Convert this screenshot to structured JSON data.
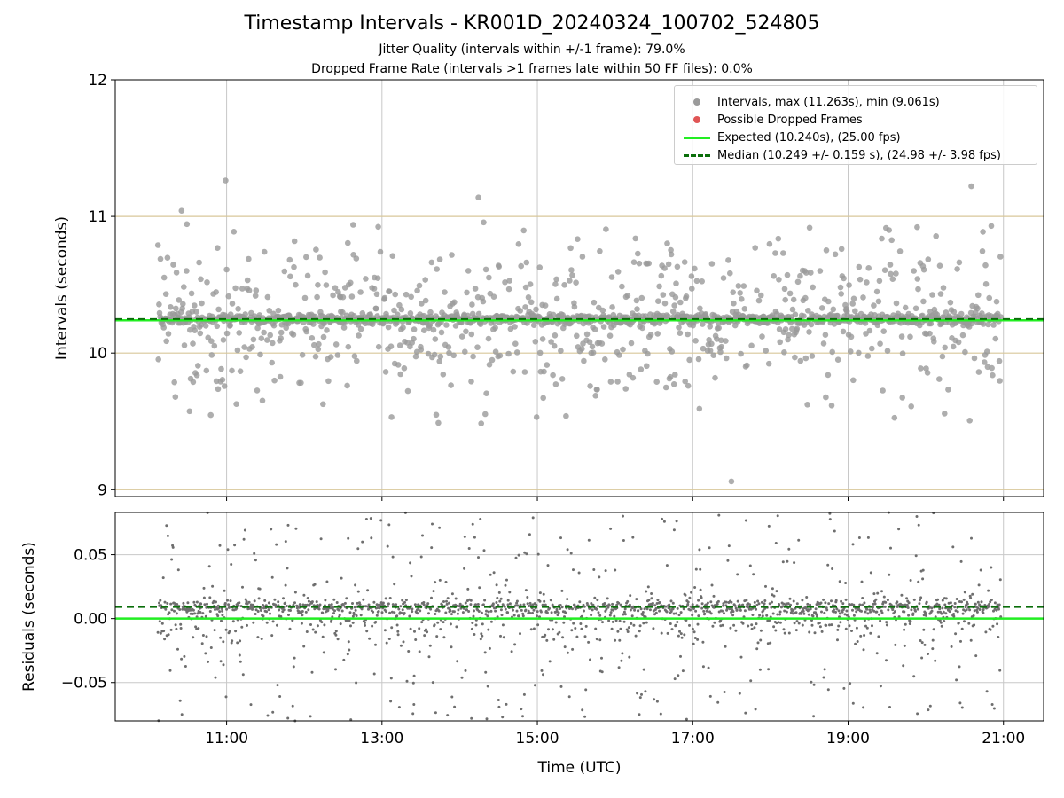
{
  "title": "Timestamp Intervals - KR001D_20240324_100702_524805",
  "subtitle1": "Jitter Quality (intervals within +/-1 frame): 79.0%",
  "subtitle2": "Dropped Frame Rate (intervals >1 frames late within 50 FF files): 0.0%",
  "colors": {
    "intervals": "#9a9a9a",
    "residuals": "#6e6e6e",
    "dropped": "#e05555",
    "expected": "#22ee22",
    "median": "#0a6e0a",
    "frame_band": "#d8c79a",
    "grid": "#c8c8c8"
  },
  "legend": {
    "intervals": "Intervals, max (11.263s), min (9.061s)",
    "dropped": "Possible Dropped Frames",
    "expected": "Expected (10.240s), (25.00 fps)",
    "median": "Median (10.249 +/- 0.159 s), (24.98 +/- 3.98 fps)"
  },
  "chart_data": [
    {
      "type": "scatter",
      "name": "intervals",
      "ylabel": "Intervals (seconds)",
      "xlim": [
        "09:34",
        "21:31"
      ],
      "ylim": [
        8.95,
        12.0
      ],
      "yticks": [
        9,
        10,
        11,
        12
      ],
      "ytick_labels": [
        "9",
        "10",
        "11",
        "12"
      ],
      "xticks": [
        "11:00",
        "13:00",
        "15:00",
        "17:00",
        "19:00",
        "21:00"
      ],
      "grid": true,
      "legend_position": "top-right",
      "x_range_data": [
        "10:07",
        "20:58"
      ],
      "interval_max": 11.263,
      "interval_min": 9.061,
      "expected": 10.24,
      "median": 10.249,
      "median_std": 0.159,
      "frame_bands": [
        9.0,
        10.0,
        11.0
      ],
      "spread_std": 0.3
    },
    {
      "type": "scatter",
      "name": "residuals",
      "xlabel": "Time (UTC)",
      "ylabel": "Residuals (seconds)",
      "xlim": [
        "09:34",
        "21:31"
      ],
      "ylim": [
        -0.08,
        0.083
      ],
      "yticks": [
        0.05,
        0.0,
        -0.05
      ],
      "ytick_labels": [
        "0.05",
        "0.00",
        "−0.05"
      ],
      "xticks": [
        "11:00",
        "13:00",
        "15:00",
        "17:00",
        "19:00",
        "21:00"
      ],
      "xtick_labels": [
        "11:00",
        "13:00",
        "15:00",
        "17:00",
        "19:00",
        "21:00"
      ],
      "grid": true,
      "expected_residual": 0.0,
      "median_residual": 0.009
    }
  ]
}
